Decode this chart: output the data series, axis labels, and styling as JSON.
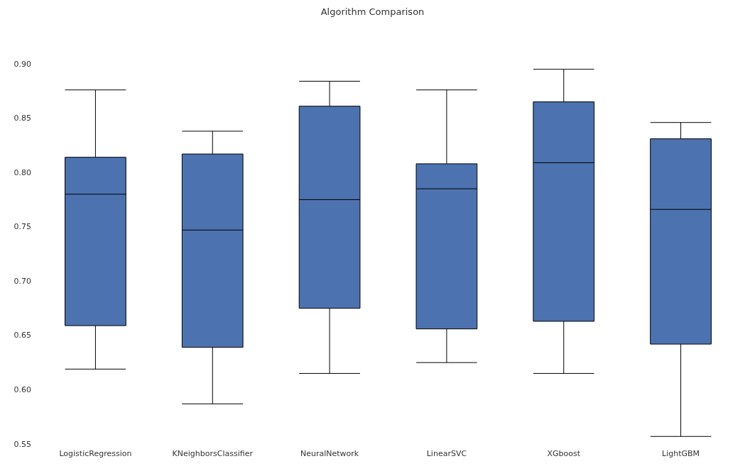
{
  "chart_data": {
    "type": "box",
    "title": "Algorithm Comparison",
    "categories": [
      "LogisticRegression",
      "KNeighborsClassifier",
      "NeuralNetwork",
      "LinearSVC",
      "XGboost",
      "LightGBM"
    ],
    "series": [
      {
        "color": "#4c72b0",
        "boxes": [
          {
            "low": 0.619,
            "q1": 0.659,
            "median": 0.78,
            "q3": 0.814,
            "high": 0.876
          },
          {
            "low": 0.587,
            "q1": 0.639,
            "median": 0.747,
            "q3": 0.817,
            "high": 0.838
          },
          {
            "low": 0.615,
            "q1": 0.675,
            "median": 0.775,
            "q3": 0.861,
            "high": 0.884
          },
          {
            "low": 0.625,
            "q1": 0.656,
            "median": 0.785,
            "q3": 0.808,
            "high": 0.876
          },
          {
            "low": 0.615,
            "q1": 0.663,
            "median": 0.809,
            "q3": 0.865,
            "high": 0.895
          },
          {
            "low": 0.557,
            "q1": 0.642,
            "median": 0.766,
            "q3": 0.831,
            "high": 0.846
          }
        ]
      }
    ],
    "ylim": [
      0.55,
      0.9
    ],
    "yticks": [
      0.55,
      {
        "value": 0.6,
        "label": "0.60"
      },
      0.65,
      {
        "value": 0.7,
        "label": "0.70"
      },
      0.75,
      {
        "value": 0.8,
        "label": "0.80"
      },
      0.85,
      {
        "value": 0.9,
        "label": "0.90"
      }
    ],
    "grid": false
  }
}
